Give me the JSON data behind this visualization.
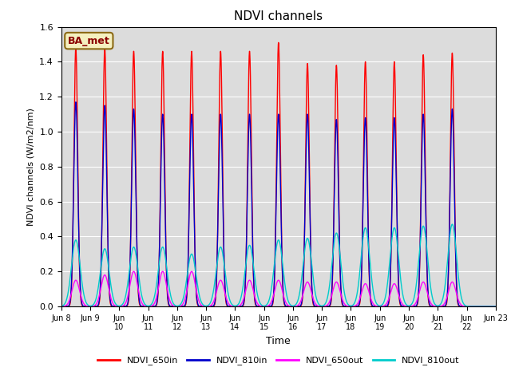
{
  "title": "NDVI channels",
  "ylabel": "NDVI channels (W/m2/nm)",
  "xlabel": "Time",
  "xlim_days": [
    8,
    23
  ],
  "ylim": [
    0.0,
    1.6
  ],
  "yticks": [
    0.0,
    0.2,
    0.4,
    0.6,
    0.8,
    1.0,
    1.2,
    1.4,
    1.6
  ],
  "xtick_days": [
    8,
    9,
    10,
    11,
    12,
    13,
    14,
    15,
    16,
    17,
    18,
    19,
    20,
    21,
    22,
    23
  ],
  "xtick_labels": [
    "Jun 8",
    "Jun 9",
    "Jun\n10",
    "Jun\n11",
    "Jun\n12",
    "Jun\n13",
    "Jun\n14",
    "Jun\n15",
    "Jun\n16",
    "Jun\n17",
    "Jun\n18",
    "Jun\n19",
    "Jun\n20",
    "Jun\n21",
    "Jun\n22",
    "Jun 23"
  ],
  "background_color": "#dcdcdc",
  "annotation_text": "BA_met",
  "annotation_color": "#8b0000",
  "annotation_bg": "#f5f0c0",
  "peak_650in": [
    1.48,
    1.48,
    1.46,
    1.46,
    1.46,
    1.46,
    1.46,
    1.51,
    1.39,
    1.38,
    1.4,
    1.4,
    1.44,
    1.45
  ],
  "peak_810in": [
    1.17,
    1.15,
    1.13,
    1.1,
    1.1,
    1.1,
    1.1,
    1.1,
    1.1,
    1.07,
    1.08,
    1.08,
    1.1,
    1.13
  ],
  "peak_650out": [
    0.15,
    0.18,
    0.2,
    0.2,
    0.2,
    0.15,
    0.15,
    0.15,
    0.14,
    0.14,
    0.13,
    0.13,
    0.14,
    0.14
  ],
  "peak_810out": [
    0.38,
    0.33,
    0.34,
    0.34,
    0.3,
    0.34,
    0.35,
    0.38,
    0.39,
    0.42,
    0.45,
    0.45,
    0.46,
    0.47
  ],
  "colors": {
    "NDVI_650in": "#ff0000",
    "NDVI_810in": "#0000cc",
    "NDVI_650out": "#ff00ff",
    "NDVI_810out": "#00cccc"
  },
  "linewidth": 1.0,
  "figsize": [
    6.4,
    4.8
  ],
  "dpi": 100
}
